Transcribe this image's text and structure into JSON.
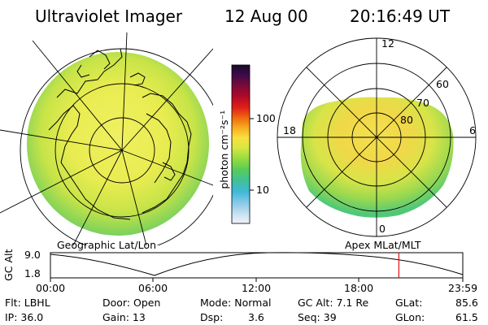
{
  "title": {
    "instrument": "Ultraviolet Imager",
    "date": "12 Aug 00",
    "time": "20:16:49  UT"
  },
  "colorbar": {
    "label": "photon cm⁻²s⁻¹",
    "ticks": [
      "100",
      "10"
    ],
    "scale": "log",
    "colors": [
      "#1a0a2a",
      "#3b0a4a",
      "#6a0a3a",
      "#a00a2a",
      "#d01020",
      "#e84010",
      "#f07010",
      "#f0a018",
      "#f8d030",
      "#e8e840",
      "#b8e040",
      "#88d848",
      "#50c860",
      "#40c0a0",
      "#40b8d8",
      "#80c8e8",
      "#c0e0f0",
      "#f0f0f8"
    ]
  },
  "left_panel": {
    "label": "Geographic Lat/Lon"
  },
  "right_panel": {
    "label": "Apex  MLat/MLT",
    "mlt_labels": {
      "top": "12",
      "left": "18",
      "right": "6",
      "bottom": "0"
    },
    "lat_labels": [
      "60",
      "70",
      "80"
    ]
  },
  "altitude_plot": {
    "ylabel": "GC Alt",
    "yticks": [
      "9.0",
      "1.8"
    ],
    "xticks": [
      "00:00",
      "06:00",
      "12:00",
      "18:00",
      "23:59"
    ],
    "current_time_fraction": 0.845
  },
  "info": {
    "flt": "Flt: LBHL",
    "ip": "IP: 36.0",
    "door": "Door: Open",
    "gain": "Gain: 13",
    "mode": "Mode: Normal",
    "dsp_label": "Dsp:",
    "dsp_value": "3.6",
    "gc_alt": "GC Alt: 7.1 Re",
    "seq": "Seq: 39",
    "glat_label": "GLat:",
    "glat_value": "85.6",
    "glon_label": "GLon:",
    "glon_value": "61.5"
  }
}
